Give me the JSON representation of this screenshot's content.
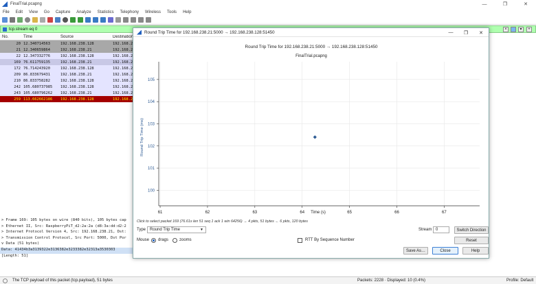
{
  "window": {
    "title": "FinalTrial.pcapng",
    "controls": [
      "—",
      "❐",
      "✕"
    ]
  },
  "menu": [
    "File",
    "Edit",
    "View",
    "Go",
    "Capture",
    "Analyze",
    "Statistics",
    "Telephony",
    "Wireless",
    "Tools",
    "Help"
  ],
  "filter": {
    "value": "tcp.stream eq 0"
  },
  "packet_list": {
    "headers": {
      "no": "No.",
      "time": "Time",
      "source": "Source",
      "destination": "Destination"
    },
    "rows": [
      {
        "no": "20",
        "time": "12.340714563",
        "source": "192.168.238.128",
        "dest": "192.168.2",
        "bg": "#a8a8a8",
        "fg": "#111111"
      },
      {
        "no": "21",
        "time": "12.340659864",
        "source": "192.168.238.21",
        "dest": "192.168.2",
        "bg": "#a8a8a8",
        "fg": "#111111"
      },
      {
        "no": "22",
        "time": "12.347332776",
        "source": "192.168.238.128",
        "dest": "192.168.2",
        "bg": "#e4e4ff",
        "fg": "#111111"
      },
      {
        "no": "169",
        "time": "76.611759135",
        "source": "192.168.238.21",
        "dest": "192.168.2",
        "bg": "#c8c8e6",
        "fg": "#111111"
      },
      {
        "no": "172",
        "time": "76.714243920",
        "source": "192.168.238.128",
        "dest": "192.168.2",
        "bg": "#e4e4ff",
        "fg": "#111111"
      },
      {
        "no": "209",
        "time": "86.833679431",
        "source": "192.168.238.21",
        "dest": "192.168.2",
        "bg": "#e4e4ff",
        "fg": "#111111"
      },
      {
        "no": "210",
        "time": "86.833758282",
        "source": "192.168.238.128",
        "dest": "192.168.2",
        "bg": "#e4e4ff",
        "fg": "#111111"
      },
      {
        "no": "242",
        "time": "105.680737985",
        "source": "192.168.238.128",
        "dest": "192.168.2",
        "bg": "#e4e4ff",
        "fg": "#111111"
      },
      {
        "no": "243",
        "time": "105.680796262",
        "source": "192.168.238.21",
        "dest": "192.168.2",
        "bg": "#e4e4ff",
        "fg": "#111111"
      },
      {
        "no": "259",
        "time": "113.662662186",
        "source": "192.168.238.128",
        "dest": "192.168.2",
        "bg": "#a40000",
        "fg": "#fff200"
      }
    ]
  },
  "details": {
    "lines": [
      "> Frame 169: 105 bytes on wire (840 bits), 105 bytes cap",
      "> Ethernet II, Src: RaspberryPiT_d2:2a:2a (d8:3a:dd:d2:2",
      "> Internet Protocol Version 4, Src: 192.168.238.21, Dst:",
      "> Transmission Control Protocol, Src Port: 5000, Dst Por",
      "v Data (51 bytes)",
      "    Data: 41434b3a3139322e3136382e3233382e32313a3530303",
      "    [Length: 51]"
    ]
  },
  "status": {
    "left": "The TCP payload of this packet (tcp.payload), 51 bytes",
    "middle": "Packets: 2228 · Displayed: 10 (0.4%)",
    "right": "Profile: Default"
  },
  "dialog": {
    "title": "Round Trip Time for 192.168.238.21:5000 → 192.168.238.128:51450",
    "hint": "Click to select packet 169 (76.61s len 51 seq 1 ack 1 win 64256) → 4 pkts, 51 bytes ← 6 pkts, 120 bytes",
    "type_label": "Type",
    "type_value": "Round Trip Time",
    "stream_label": "Stream",
    "stream_value": "0",
    "switch_label": "Switch Direction",
    "mouse_label": "Mouse",
    "drags_label": "drags",
    "zooms_label": "zooms",
    "rtt_label": "RTT By Sequence Number",
    "reset_label": "Reset",
    "saveas_label": "Save As…",
    "close_label": "Close",
    "help_label": "Help"
  },
  "chart_data": {
    "type": "scatter",
    "title": "Round Trip Time for 192.168.238.21:5000 → 192.168.238.128:51450",
    "subtitle": "FinalTrial.pcapng",
    "xlabel": "Time (s)",
    "ylabel": "Round Trip Time (ms)",
    "xlim": [
      60.97,
      67.75
    ],
    "ylim": [
      99.3,
      105.8
    ],
    "xticks": [
      61,
      62,
      63,
      64,
      65,
      66,
      67
    ],
    "yticks": [
      100,
      101,
      102,
      103,
      104,
      105
    ],
    "grid": true,
    "points": [
      {
        "x": 64.27,
        "y": 102.4
      }
    ],
    "point_color": "#2e5b94"
  }
}
